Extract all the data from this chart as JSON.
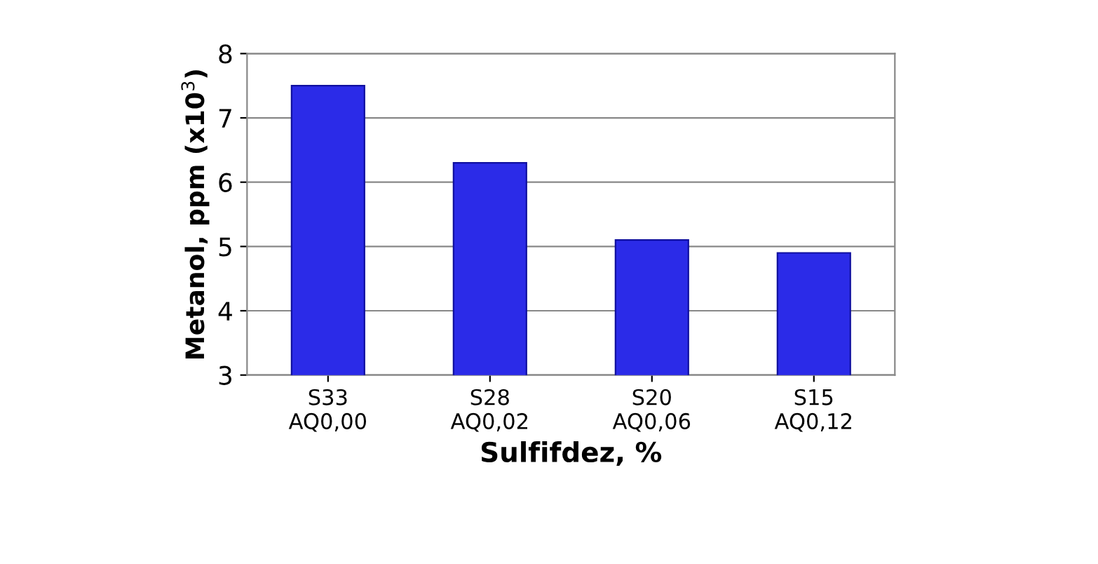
{
  "chart_data": {
    "type": "bar",
    "xlabel": "Sulfifdez, %",
    "ylabel": "Metanol, ppm (x10$^{3}$)",
    "categories": [
      "S33\nAQ0,00",
      "S28\nAQ0,02",
      "S20\nAQ0,06",
      "S15\nAQ0,12"
    ],
    "values": [
      7.5,
      6.3,
      5.1,
      4.9
    ],
    "color": "#2b2be8",
    "ylim": [
      3,
      8
    ],
    "yticks": [
      3,
      4,
      5,
      6,
      7,
      8
    ],
    "grid": "y",
    "legend": false
  }
}
